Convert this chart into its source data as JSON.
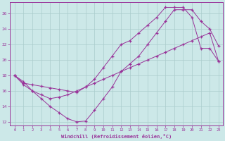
{
  "background_color": "#cce8e8",
  "grid_color": "#aacccc",
  "line_color": "#993399",
  "xlabel": "Windchill (Refroidissement éolien,°C)",
  "xlim": [
    -0.5,
    23.5
  ],
  "ylim": [
    11.5,
    27.5
  ],
  "yticks": [
    12,
    14,
    16,
    18,
    20,
    22,
    24,
    26
  ],
  "xticks": [
    0,
    1,
    2,
    3,
    4,
    5,
    6,
    7,
    8,
    9,
    10,
    11,
    12,
    13,
    14,
    15,
    16,
    17,
    18,
    19,
    20,
    21,
    22,
    23
  ],
  "line1_x": [
    0,
    1,
    2,
    3,
    4,
    5,
    6,
    7,
    8,
    9,
    10,
    11,
    12,
    13,
    14,
    15,
    16,
    17,
    18,
    19,
    20,
    21,
    22,
    23
  ],
  "line1_y": [
    18,
    17.0,
    16.8,
    16.6,
    16.4,
    16.2,
    16.0,
    15.8,
    16.5,
    17.0,
    17.5,
    18.0,
    18.5,
    19.0,
    19.5,
    20.0,
    20.5,
    21.0,
    21.5,
    22.0,
    22.5,
    23.0,
    23.5,
    19.8
  ],
  "line2_x": [
    0,
    1,
    2,
    3,
    4,
    5,
    6,
    7,
    8,
    9,
    10,
    11,
    12,
    13,
    14,
    15,
    16,
    17,
    18,
    19,
    20,
    21,
    22,
    23
  ],
  "line2_y": [
    18,
    16.8,
    16.0,
    15.0,
    14.0,
    13.2,
    12.4,
    12.0,
    12.1,
    13.5,
    15.0,
    16.5,
    18.5,
    19.5,
    20.5,
    22.0,
    23.5,
    25.0,
    26.5,
    26.5,
    26.5,
    25.0,
    24.0,
    21.8
  ],
  "line3_x": [
    0,
    1,
    2,
    3,
    4,
    5,
    6,
    7,
    8,
    9,
    10,
    11,
    12,
    13,
    14,
    15,
    16,
    17,
    18,
    19,
    20,
    21,
    22,
    23
  ],
  "line3_y": [
    18,
    17.2,
    16.0,
    15.5,
    15.0,
    15.2,
    15.5,
    16.0,
    16.5,
    17.5,
    19.0,
    20.5,
    22.0,
    22.5,
    23.5,
    24.5,
    25.5,
    26.8,
    26.8,
    26.8,
    25.5,
    21.5,
    21.5,
    19.8
  ]
}
